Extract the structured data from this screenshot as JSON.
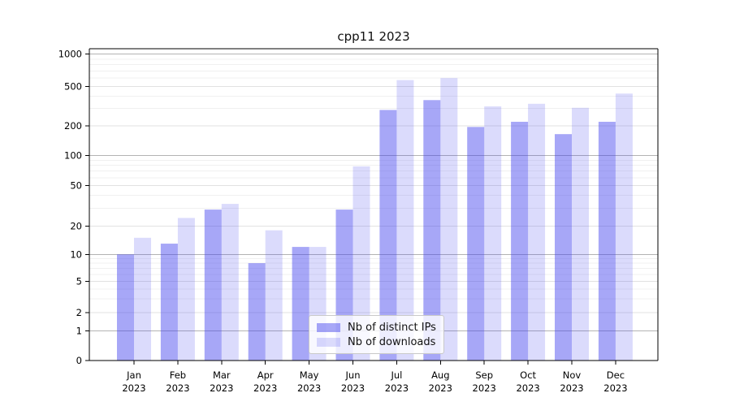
{
  "chart_data": {
    "type": "bar",
    "title": "cpp11 2023",
    "months": [
      "Jan",
      "Feb",
      "Mar",
      "Apr",
      "May",
      "Jun",
      "Jul",
      "Aug",
      "Sep",
      "Oct",
      "Nov",
      "Dec"
    ],
    "year": "2023",
    "series": [
      {
        "name": "Nb of distinct IPs",
        "values": [
          10,
          13,
          29,
          8,
          12,
          29,
          290,
          365,
          195,
          220,
          165,
          220
        ],
        "color": "#4040ee",
        "alpha": 0.46
      },
      {
        "name": "Nb of downloads",
        "values": [
          15,
          24,
          33,
          18,
          12,
          78,
          575,
          600,
          315,
          335,
          305,
          425
        ],
        "color": "#4040ee",
        "alpha": 0.19
      }
    ],
    "y_ticks": [
      0,
      1,
      2,
      5,
      10,
      20,
      50,
      100,
      200,
      500,
      1000
    ],
    "y_scale": "log-above-1-linear-below (symlog-like)",
    "ylim": [
      0,
      1000
    ],
    "xlabel": "",
    "ylabel": "",
    "grid": true,
    "legend_position": "lower center"
  }
}
